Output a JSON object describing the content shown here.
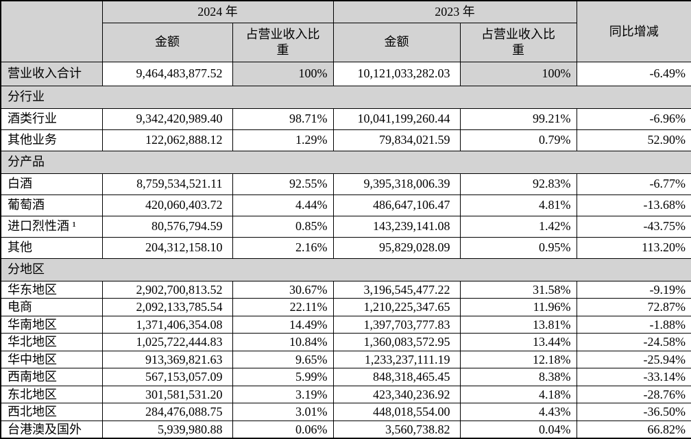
{
  "colors": {
    "header_bg": "#d3d3d3",
    "border": "#000000",
    "text": "#000000",
    "cell_bg": "#ffffff"
  },
  "table": {
    "header": {
      "year_2024": "2024 年",
      "year_2023": "2023 年",
      "amount": "金额",
      "ratio": "占营业收入比重",
      "yoy": "同比增减"
    },
    "rows": [
      {
        "type": "total",
        "label": "营业收入合计",
        "a2024": "9,464,483,877.52",
        "p2024": "100%",
        "a2023": "10,121,033,282.03",
        "p2023": "100%",
        "yoy": "-6.49%"
      },
      {
        "type": "section",
        "label": "分行业"
      },
      {
        "type": "data",
        "label": "酒类行业",
        "a2024": "9,342,420,989.40",
        "p2024": "98.71%",
        "a2023": "10,041,199,260.44",
        "p2023": "99.21%",
        "yoy": "-6.96%"
      },
      {
        "type": "data",
        "label": "其他业务",
        "a2024": "122,062,888.12",
        "p2024": "1.29%",
        "a2023": "79,834,021.59",
        "p2023": "0.79%",
        "yoy": "52.90%"
      },
      {
        "type": "section",
        "label": "分产品"
      },
      {
        "type": "data",
        "label": "白酒",
        "a2024": "8,759,534,521.11",
        "p2024": "92.55%",
        "a2023": "9,395,318,006.39",
        "p2023": "92.83%",
        "yoy": "-6.77%"
      },
      {
        "type": "data",
        "label": "葡萄酒",
        "a2024": "420,060,403.72",
        "p2024": "4.44%",
        "a2023": "486,647,106.47",
        "p2023": "4.81%",
        "yoy": "-13.68%"
      },
      {
        "type": "data",
        "label": "进口烈性酒 ¹",
        "a2024": "80,576,794.59",
        "p2024": "0.85%",
        "a2023": "143,239,141.08",
        "p2023": "1.42%",
        "yoy": "-43.75%"
      },
      {
        "type": "data",
        "label": "其他",
        "a2024": "204,312,158.10",
        "p2024": "2.16%",
        "a2023": "95,829,028.09",
        "p2023": "0.95%",
        "yoy": "113.20%"
      },
      {
        "type": "section",
        "label": "分地区"
      },
      {
        "type": "region",
        "label": "华东地区",
        "a2024": "2,902,700,813.52",
        "p2024": "30.67%",
        "a2023": "3,196,545,477.22",
        "p2023": "31.58%",
        "yoy": "-9.19%"
      },
      {
        "type": "region",
        "label": "电商",
        "a2024": "2,092,133,785.54",
        "p2024": "22.11%",
        "a2023": "1,210,225,347.65",
        "p2023": "11.96%",
        "yoy": "72.87%"
      },
      {
        "type": "region",
        "label": "华南地区",
        "a2024": "1,371,406,354.08",
        "p2024": "14.49%",
        "a2023": "1,397,703,777.83",
        "p2023": "13.81%",
        "yoy": "-1.88%"
      },
      {
        "type": "region",
        "label": "华北地区",
        "a2024": "1,025,722,444.83",
        "p2024": "10.84%",
        "a2023": "1,360,083,572.95",
        "p2023": "13.44%",
        "yoy": "-24.58%"
      },
      {
        "type": "region",
        "label": "华中地区",
        "a2024": "913,369,821.63",
        "p2024": "9.65%",
        "a2023": "1,233,237,111.19",
        "p2023": "12.18%",
        "yoy": "-25.94%"
      },
      {
        "type": "region",
        "label": "西南地区",
        "a2024": "567,153,057.09",
        "p2024": "5.99%",
        "a2023": "848,318,465.45",
        "p2023": "8.38%",
        "yoy": "-33.14%"
      },
      {
        "type": "region",
        "label": "东北地区",
        "a2024": "301,581,531.20",
        "p2024": "3.19%",
        "a2023": "423,340,236.92",
        "p2023": "4.18%",
        "yoy": "-28.76%"
      },
      {
        "type": "region",
        "label": "西北地区",
        "a2024": "284,476,088.75",
        "p2024": "3.01%",
        "a2023": "448,018,554.00",
        "p2023": "4.43%",
        "yoy": "-36.50%"
      },
      {
        "type": "region",
        "label": "台港澳及国外",
        "a2024": "5,939,980.88",
        "p2024": "0.06%",
        "a2023": "3,560,738.82",
        "p2023": "0.04%",
        "yoy": "66.82%"
      }
    ]
  }
}
